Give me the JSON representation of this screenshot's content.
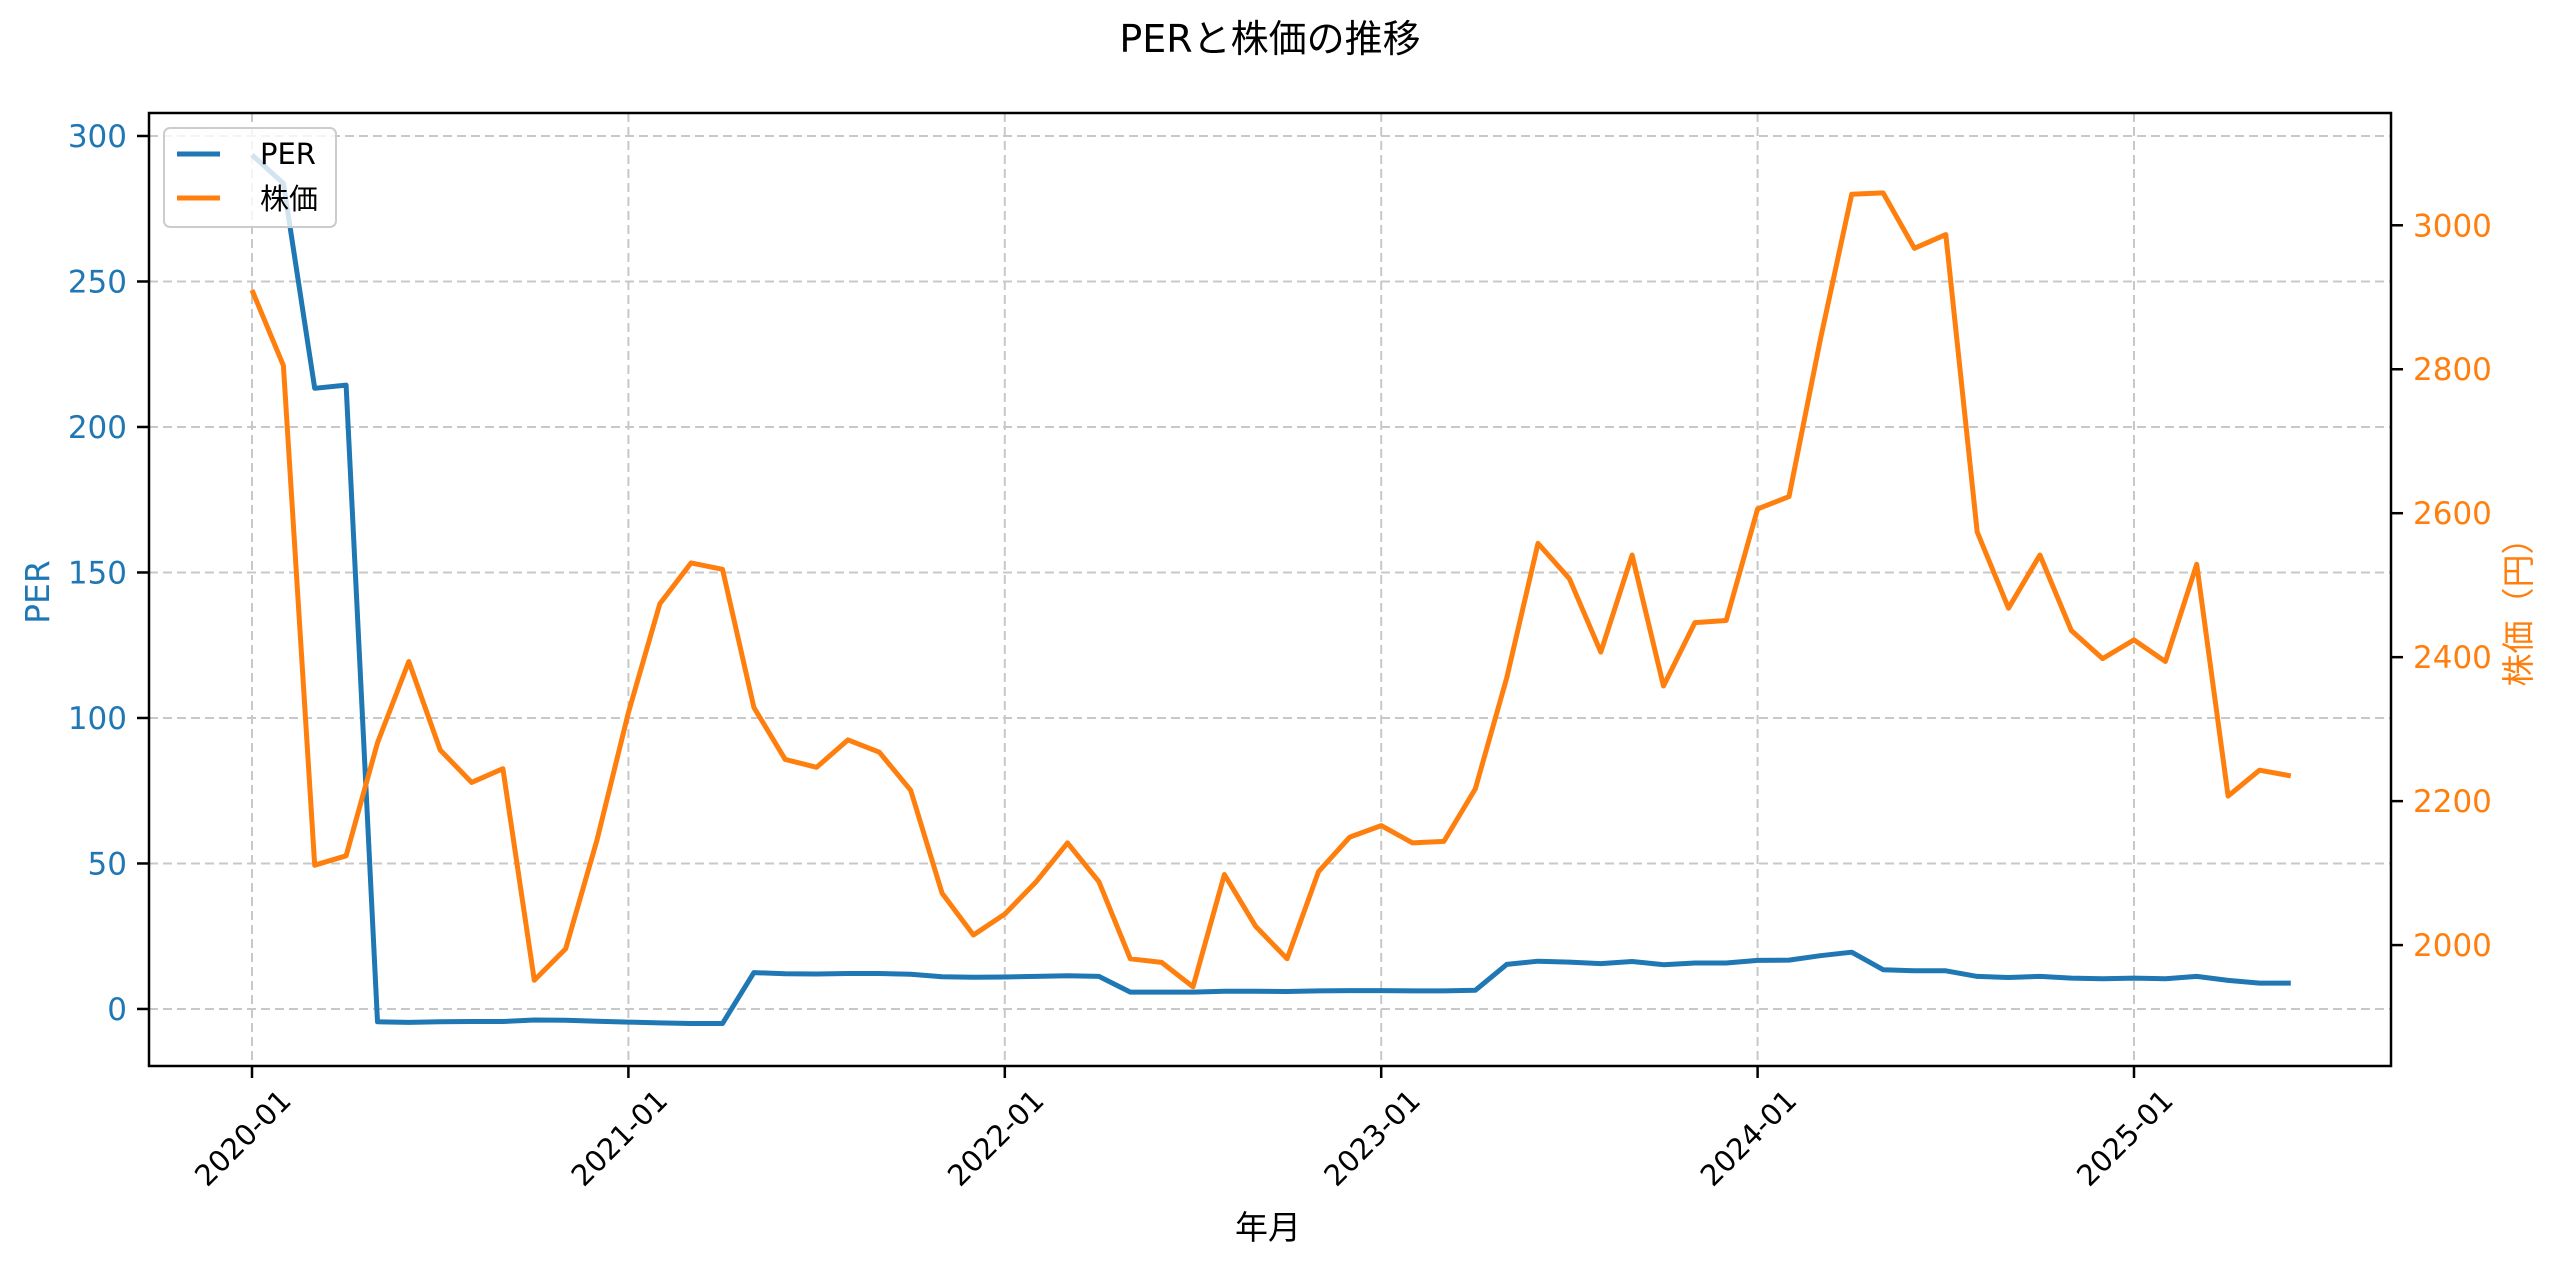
{
  "chart_data": {
    "type": "line",
    "title": "PERと株価の推移",
    "xlabel": "年月",
    "ylabel": "PER",
    "ylabel_right": "株価（円）",
    "x_ticks": [
      "2020-01",
      "2021-01",
      "2022-01",
      "2023-01",
      "2024-01",
      "2025-01"
    ],
    "y_ticks_left": [
      0,
      50,
      100,
      150,
      200,
      250,
      300
    ],
    "y_ticks_right": [
      2000,
      2200,
      2400,
      2600,
      2800,
      3000
    ],
    "ylim_left": [
      -19.6,
      307.9
    ],
    "ylim_right": [
      1832,
      3156
    ],
    "grid": true,
    "legend_position": "upper left",
    "colors": {
      "PER": "#1f77b4",
      "株価": "#ff7f0e",
      "grid": "#c8c8c8"
    },
    "x": [
      "2020-01",
      "2020-02",
      "2020-03",
      "2020-04",
      "2020-05",
      "2020-06",
      "2020-07",
      "2020-08",
      "2020-09",
      "2020-10",
      "2020-11",
      "2020-12",
      "2021-01",
      "2021-02",
      "2021-03",
      "2021-04",
      "2021-05",
      "2021-06",
      "2021-07",
      "2021-08",
      "2021-09",
      "2021-10",
      "2021-11",
      "2021-12",
      "2022-01",
      "2022-02",
      "2022-03",
      "2022-04",
      "2022-05",
      "2022-06",
      "2022-07",
      "2022-08",
      "2022-09",
      "2022-10",
      "2022-11",
      "2022-12",
      "2023-01",
      "2023-02",
      "2023-03",
      "2023-04",
      "2023-05",
      "2023-06",
      "2023-07",
      "2023-08",
      "2023-09",
      "2023-10",
      "2023-11",
      "2023-12",
      "2024-01",
      "2024-02",
      "2024-03",
      "2024-04",
      "2024-05",
      "2024-06",
      "2024-07",
      "2024-08",
      "2024-09",
      "2024-10",
      "2024-11",
      "2024-12",
      "2025-01",
      "2025-02",
      "2025-03",
      "2025-04",
      "2025-05",
      "2025-06"
    ],
    "series": [
      {
        "name": "PER",
        "axis": "left",
        "values": [
          293.5,
          283.7,
          213.3,
          214.4,
          -4.4,
          -4.6,
          -4.4,
          -4.3,
          -4.3,
          -3.8,
          -3.9,
          -4.2,
          -4.5,
          -4.8,
          -5.0,
          -5.0,
          12.5,
          12.1,
          12.0,
          12.2,
          12.2,
          11.9,
          11.1,
          10.9,
          11.0,
          11.2,
          11.4,
          11.2,
          5.8,
          5.8,
          5.8,
          6.1,
          6.1,
          6.0,
          6.2,
          6.3,
          6.3,
          6.2,
          6.2,
          6.4,
          15.3,
          16.4,
          16.1,
          15.6,
          16.3,
          15.2,
          15.8,
          15.8,
          16.7,
          16.8,
          18.3,
          19.5,
          13.5,
          13.1,
          13.1,
          11.2,
          10.8,
          11.2,
          10.6,
          10.4,
          10.6,
          10.4,
          11.2,
          9.8,
          8.9,
          8.9
        ]
      },
      {
        "name": "株価",
        "axis": "right",
        "values": [
          2910,
          2805,
          2111,
          2124,
          2281,
          2394,
          2271,
          2226,
          2245,
          1951,
          1995,
          2146,
          2323,
          2474,
          2531,
          2522,
          2330,
          2258,
          2247,
          2285,
          2268,
          2215,
          2072,
          2014,
          2043,
          2088,
          2142,
          2088,
          1981,
          1976,
          1942,
          2098,
          2026,
          1981,
          2102,
          2150,
          2166,
          2142,
          2144,
          2217,
          2371,
          2558,
          2509,
          2407,
          2542,
          2360,
          2448,
          2451,
          2606,
          2623,
          2841,
          3043,
          3045,
          2968,
          2987,
          2574,
          2468,
          2542,
          2437,
          2398,
          2424,
          2394,
          2529,
          2207,
          2243,
          2235
        ]
      }
    ]
  },
  "legend": {
    "items": [
      {
        "label": "PER",
        "color": "#1f77b4"
      },
      {
        "label": "株価",
        "color": "#ff7f0e"
      }
    ]
  }
}
